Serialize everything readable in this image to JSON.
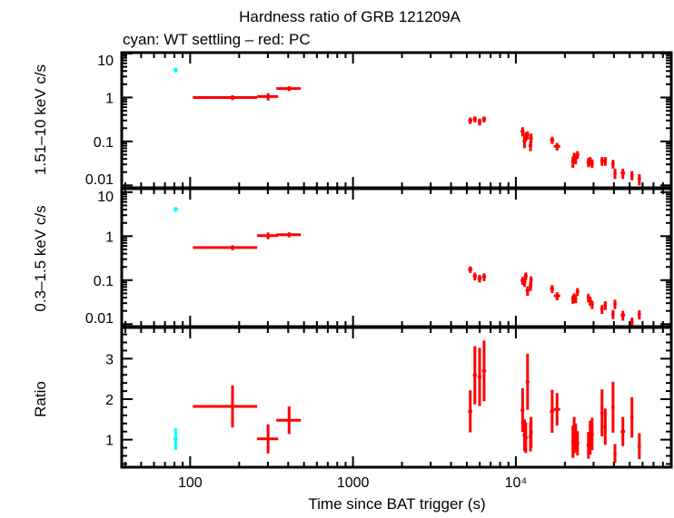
{
  "chart_data": {
    "type": "scatter",
    "title": "Hardness ratio of GRB 121209A",
    "subtitle": "cyan: WT settling – red: PC",
    "xlabel": "Time since BAT trigger (s)",
    "xscale": "log",
    "xlim": [
      38,
      90000
    ],
    "x_ticks": [
      {
        "value": 100,
        "label": "100"
      },
      {
        "value": 1000,
        "label": "1000"
      },
      {
        "value": 10000,
        "label": "10⁴"
      }
    ],
    "colors": {
      "WT": "#00ffff",
      "PC": "#ff0000",
      "axes": "#000000"
    },
    "grid": false,
    "panels": [
      {
        "key": "hard",
        "ylabel": "1.51–10 keV c/s",
        "yscale": "log",
        "ylim": [
          0.0088,
          10.5
        ],
        "y_ticks": [
          {
            "value": 10,
            "label": "10"
          },
          {
            "value": 1,
            "label": "1"
          },
          {
            "value": 0.1,
            "label": "0.1"
          },
          {
            "value": 0.01,
            "label": "0.01"
          }
        ]
      },
      {
        "key": "soft",
        "ylabel": "0.3–1.5 keV c/s",
        "yscale": "log",
        "ylim": [
          0.0088,
          12
        ],
        "y_ticks": [
          {
            "value": 10,
            "label": "10"
          },
          {
            "value": 1,
            "label": "1"
          },
          {
            "value": 0.1,
            "label": "0.1"
          },
          {
            "value": 0.01,
            "label": "0.01"
          }
        ]
      },
      {
        "key": "ratio",
        "ylabel": "Ratio",
        "yscale": "linear",
        "ylim": [
          0.32,
          3.77
        ],
        "y_ticks": [
          {
            "value": 1,
            "label": "1"
          },
          {
            "value": 2,
            "label": "2"
          },
          {
            "value": 3,
            "label": "3"
          }
        ]
      }
    ],
    "points": [
      {
        "mode": "WT",
        "t": 81.5,
        "t_lo": 79,
        "t_hi": 84,
        "hard": 4.2,
        "hard_err": 0.5,
        "soft": 4.1,
        "soft_err": 0.5,
        "ratio": 1.02,
        "ratio_err": 0.27
      },
      {
        "mode": "PC",
        "t": 182,
        "t_lo": 104,
        "t_hi": 258,
        "hard": 1.0,
        "hard_err": 0.12,
        "soft": 0.55,
        "soft_err": 0.07,
        "ratio": 1.82,
        "ratio_err": 0.52
      },
      {
        "mode": "PC",
        "t": 301,
        "t_lo": 258,
        "t_hi": 347,
        "hard": 1.05,
        "hard_err": 0.2,
        "soft": 1.03,
        "soft_err": 0.18,
        "ratio": 1.02,
        "ratio_err": 0.36
      },
      {
        "mode": "PC",
        "t": 405,
        "t_lo": 338,
        "t_hi": 478,
        "hard": 1.6,
        "hard_err": 0.2,
        "soft": 1.08,
        "soft_err": 0.14,
        "ratio": 1.48,
        "ratio_err": 0.34
      },
      {
        "mode": "PC",
        "t": 5250,
        "t_lo": 5100,
        "t_hi": 5400,
        "hard": 0.3,
        "hard_err": 0.05,
        "soft": 0.176,
        "soft_err": 0.03,
        "ratio": 1.7,
        "ratio_err": 0.52
      },
      {
        "mode": "PC",
        "t": 5600,
        "t_lo": 5450,
        "t_hi": 5750,
        "hard": 0.32,
        "hard_err": 0.05,
        "soft": 0.124,
        "soft_err": 0.025,
        "ratio": 2.59,
        "ratio_err": 0.72
      },
      {
        "mode": "PC",
        "t": 5990,
        "t_lo": 5830,
        "t_hi": 6150,
        "hard": 0.28,
        "hard_err": 0.05,
        "soft": 0.11,
        "soft_err": 0.022,
        "ratio": 2.55,
        "ratio_err": 0.72
      },
      {
        "mode": "PC",
        "t": 6380,
        "t_lo": 6200,
        "t_hi": 6560,
        "hard": 0.32,
        "hard_err": 0.05,
        "soft": 0.119,
        "soft_err": 0.024,
        "ratio": 2.7,
        "ratio_err": 0.75
      },
      {
        "mode": "PC",
        "t": 11000,
        "t_lo": 10700,
        "t_hi": 11300,
        "hard": 0.17,
        "hard_err": 0.04,
        "soft": 0.098,
        "soft_err": 0.02,
        "ratio": 1.73,
        "ratio_err": 0.54
      },
      {
        "mode": "PC",
        "t": 11300,
        "t_lo": 11000,
        "t_hi": 11600,
        "hard": 0.1,
        "hard_err": 0.03,
        "soft": 0.09,
        "soft_err": 0.02,
        "ratio": 1.11,
        "ratio_err": 0.39
      },
      {
        "mode": "PC",
        "t": 11500,
        "t_lo": 11200,
        "t_hi": 11800,
        "hard": 0.13,
        "hard_err": 0.03,
        "soft": 0.124,
        "soft_err": 0.025,
        "ratio": 1.05,
        "ratio_err": 0.38
      },
      {
        "mode": "PC",
        "t": 11800,
        "t_lo": 11500,
        "t_hi": 12100,
        "hard": 0.14,
        "hard_err": 0.03,
        "soft": 0.058,
        "soft_err": 0.014,
        "ratio": 2.43,
        "ratio_err": 0.69
      },
      {
        "mode": "PC",
        "t": 12300,
        "t_lo": 12000,
        "t_hi": 12600,
        "hard": 0.08,
        "hard_err": 0.02,
        "soft": 0.075,
        "soft_err": 0.018,
        "ratio": 1.07,
        "ratio_err": 0.36
      },
      {
        "mode": "PC",
        "t": 12400,
        "t_lo": 12100,
        "t_hi": 12700,
        "hard": 0.12,
        "hard_err": 0.03,
        "soft": 0.102,
        "soft_err": 0.02,
        "ratio": 1.18,
        "ratio_err": 0.38
      },
      {
        "mode": "PC",
        "t": 16700,
        "t_lo": 16200,
        "t_hi": 17200,
        "hard": 0.108,
        "hard_err": 0.02,
        "soft": 0.064,
        "soft_err": 0.013,
        "ratio": 1.7,
        "ratio_err": 0.53
      },
      {
        "mode": "PC",
        "t": 17900,
        "t_lo": 17100,
        "t_hi": 18700,
        "hard": 0.077,
        "hard_err": 0.015,
        "soft": 0.044,
        "soft_err": 0.009,
        "ratio": 1.75,
        "ratio_err": 0.4
      },
      {
        "mode": "PC",
        "t": 22400,
        "t_lo": 21900,
        "t_hi": 22900,
        "hard": 0.035,
        "hard_err": 0.01,
        "soft": 0.037,
        "soft_err": 0.008,
        "ratio": 0.95,
        "ratio_err": 0.4
      },
      {
        "mode": "PC",
        "t": 22800,
        "t_lo": 22300,
        "t_hi": 23300,
        "hard": 0.045,
        "hard_err": 0.01,
        "soft": 0.041,
        "soft_err": 0.009,
        "ratio": 1.11,
        "ratio_err": 0.45
      },
      {
        "mode": "PC",
        "t": 23300,
        "t_lo": 22800,
        "t_hi": 23800,
        "hard": 0.04,
        "hard_err": 0.01,
        "soft": 0.038,
        "soft_err": 0.008,
        "ratio": 1.05,
        "ratio_err": 0.35
      },
      {
        "mode": "PC",
        "t": 23900,
        "t_lo": 23300,
        "t_hi": 24500,
        "hard": 0.05,
        "hard_err": 0.01,
        "soft": 0.055,
        "soft_err": 0.011,
        "ratio": 0.91,
        "ratio_err": 0.3
      },
      {
        "mode": "PC",
        "t": 27900,
        "t_lo": 27200,
        "t_hi": 28600,
        "hard": 0.034,
        "hard_err": 0.008,
        "soft": 0.04,
        "soft_err": 0.009,
        "ratio": 0.86,
        "ratio_err": 0.33
      },
      {
        "mode": "PC",
        "t": 28600,
        "t_lo": 27900,
        "t_hi": 29300,
        "hard": 0.036,
        "hard_err": 0.008,
        "soft": 0.034,
        "soft_err": 0.008,
        "ratio": 1.05,
        "ratio_err": 0.42
      },
      {
        "mode": "PC",
        "t": 29400,
        "t_lo": 28700,
        "t_hi": 30100,
        "hard": 0.032,
        "hard_err": 0.007,
        "soft": 0.028,
        "soft_err": 0.006,
        "ratio": 1.14,
        "ratio_err": 0.4
      },
      {
        "mode": "PC",
        "t": 33800,
        "t_lo": 33000,
        "t_hi": 34600,
        "hard": 0.036,
        "hard_err": 0.008,
        "soft": 0.022,
        "soft_err": 0.005,
        "ratio": 1.66,
        "ratio_err": 0.58
      },
      {
        "mode": "PC",
        "t": 35400,
        "t_lo": 34600,
        "t_hi": 36200,
        "hard": 0.036,
        "hard_err": 0.008,
        "soft": 0.027,
        "soft_err": 0.006,
        "ratio": 1.32,
        "ratio_err": 0.45
      },
      {
        "mode": "PC",
        "t": 39500,
        "t_lo": 38600,
        "t_hi": 40400,
        "hard": 0.031,
        "hard_err": 0.007,
        "soft": 0.017,
        "soft_err": 0.004,
        "ratio": 1.8,
        "ratio_err": 0.63
      },
      {
        "mode": "PC",
        "t": 40600,
        "t_lo": 39700,
        "t_hi": 41500,
        "hard": 0.019,
        "hard_err": 0.005,
        "soft": 0.029,
        "soft_err": 0.007,
        "ratio": 0.66,
        "ratio_err": 0.23
      },
      {
        "mode": "PC",
        "t": 45400,
        "t_lo": 44000,
        "t_hi": 46800,
        "hard": 0.019,
        "hard_err": 0.005,
        "soft": 0.016,
        "soft_err": 0.004,
        "ratio": 1.2,
        "ratio_err": 0.36
      },
      {
        "mode": "PC",
        "t": 51600,
        "t_lo": 50400,
        "t_hi": 52800,
        "hard": 0.017,
        "hard_err": 0.004,
        "soft": 0.011,
        "soft_err": 0.003,
        "ratio": 1.55,
        "ratio_err": 0.5
      },
      {
        "mode": "PC",
        "t": 57300,
        "t_lo": 56000,
        "t_hi": 58600,
        "hard": 0.014,
        "hard_err": 0.004,
        "soft": 0.0167,
        "soft_err": 0.004,
        "ratio": 0.84,
        "ratio_err": 0.32
      }
    ]
  }
}
